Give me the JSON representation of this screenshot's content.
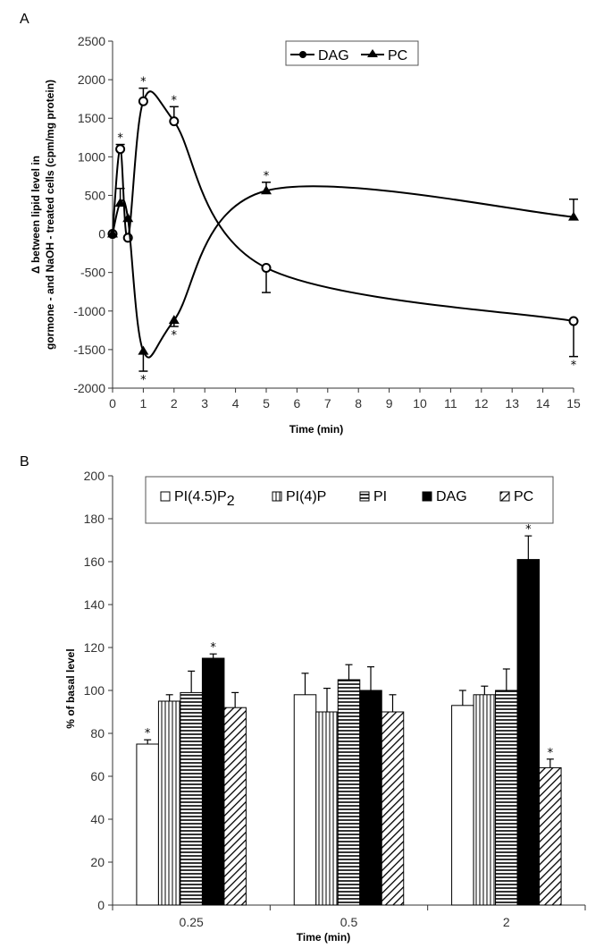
{
  "chart_data": [
    {
      "panel_label": "A",
      "type": "line",
      "title": "",
      "xlabel": "Time (min)",
      "ylabel_lines": [
        "Δ between lipid level in",
        "gormone - and NaOH - treated cells (cpm/mg protein)"
      ],
      "xlim": [
        0,
        15
      ],
      "ylim": [
        -2000,
        2500
      ],
      "xticks": [
        "0",
        "1",
        "2",
        "3",
        "4",
        "5",
        "6",
        "7",
        "8",
        "9",
        "10",
        "11",
        "12",
        "13",
        "14",
        "15"
      ],
      "yticks": [
        "2500",
        "2000",
        "1500",
        "1000",
        "500",
        "0",
        "-500",
        "-1000",
        "-1500",
        "-2000"
      ],
      "grid": false,
      "legend": {
        "placement": "top-center",
        "entries": [
          "DAG",
          "PC"
        ]
      },
      "series": [
        {
          "name": "DAG",
          "marker": "circle",
          "x": [
            0,
            0.25,
            0.5,
            1,
            2,
            5,
            15
          ],
          "y": [
            0,
            1100,
            -50,
            1720,
            1460,
            -440,
            -1130
          ],
          "err": [
            0,
            60,
            0,
            170,
            190,
            320,
            460
          ],
          "err_dir": [
            "none",
            "up",
            "none",
            "up",
            "up",
            "down",
            "down"
          ],
          "significant": [
            false,
            true,
            false,
            true,
            true,
            false,
            true
          ]
        },
        {
          "name": "PC",
          "marker": "triangle",
          "x": [
            0,
            0.25,
            0.5,
            1,
            2,
            5,
            15
          ],
          "y": [
            0,
            400,
            200,
            -1520,
            -1120,
            560,
            220
          ],
          "err": [
            0,
            190,
            0,
            260,
            80,
            110,
            230
          ],
          "err_dir": [
            "none",
            "up",
            "none",
            "down",
            "down",
            "up",
            "up"
          ],
          "significant": [
            false,
            false,
            false,
            true,
            true,
            true,
            false
          ]
        }
      ]
    },
    {
      "panel_label": "B",
      "type": "bar",
      "title": "",
      "xlabel": "Time (min)",
      "ylabel": "% of basal level",
      "ylim": [
        0,
        200
      ],
      "yticks": [
        "0",
        "20",
        "40",
        "60",
        "80",
        "100",
        "120",
        "140",
        "160",
        "180",
        "200"
      ],
      "categories": [
        "0.25",
        "0.5",
        "2"
      ],
      "grid": false,
      "legend": {
        "placement": "top",
        "entries": [
          "PI(4.5)P2",
          "PI(4)P",
          "PI",
          "DAG",
          "PC"
        ]
      },
      "series": [
        {
          "name": "PI(4.5)P2",
          "label_main": "PI(4.5)P",
          "label_sub": "2",
          "pattern": "white",
          "values": [
            75,
            98,
            93
          ],
          "err": [
            2,
            10,
            7
          ],
          "significant": [
            true,
            false,
            false
          ]
        },
        {
          "name": "PI(4)P",
          "label_main": "PI(4)P",
          "label_sub": "",
          "pattern": "vertical",
          "values": [
            95,
            90,
            98
          ],
          "err": [
            3,
            11,
            4
          ],
          "significant": [
            false,
            false,
            false
          ]
        },
        {
          "name": "PI",
          "label_main": "PI",
          "label_sub": "",
          "pattern": "horizontal",
          "values": [
            99,
            105,
            100
          ],
          "err": [
            10,
            7,
            10
          ],
          "significant": [
            false,
            false,
            false
          ]
        },
        {
          "name": "DAG",
          "label_main": "DAG",
          "label_sub": "",
          "pattern": "black",
          "values": [
            115,
            100,
            161
          ],
          "err": [
            2,
            11,
            11
          ],
          "significant": [
            true,
            false,
            true
          ]
        },
        {
          "name": "PC",
          "label_main": "PC",
          "label_sub": "",
          "pattern": "diagonal",
          "values": [
            92,
            90,
            64
          ],
          "err": [
            7,
            8,
            4
          ],
          "significant": [
            false,
            false,
            true
          ]
        }
      ]
    }
  ]
}
